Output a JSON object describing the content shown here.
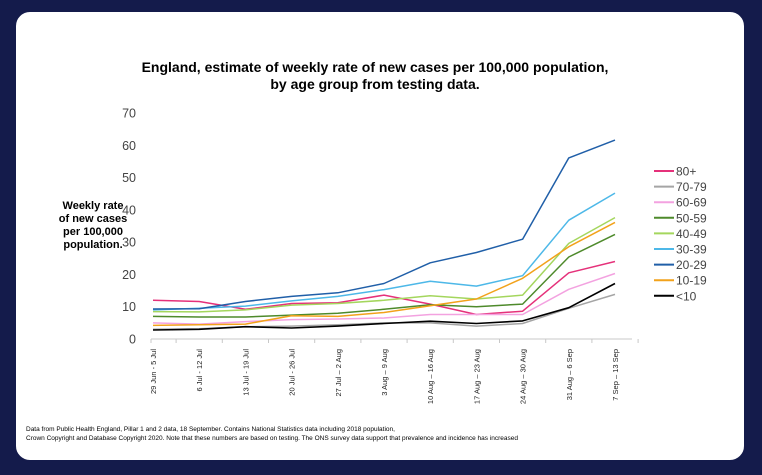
{
  "chart_data": {
    "type": "line",
    "title_line1": "England, estimate of weekly rate of new cases per 100,000 population,",
    "title_line2": "by age group from testing data.",
    "ylabel_lines": [
      "Weekly rate",
      "of new cases",
      "per 100,000",
      "population."
    ],
    "xlabel": "",
    "ylim": [
      0,
      70
    ],
    "yticks": [
      0,
      10,
      20,
      30,
      40,
      50,
      60,
      70
    ],
    "grid": false,
    "legend_position": "right",
    "categories": [
      "29 Jun - 5 Jul",
      "6 Jul - 12 Jul",
      "13 Jul - 19 Jul",
      "20 Jul - 26 Jul",
      "27 Jul – 2 Aug",
      "3 Aug – 9 Aug",
      "10 Aug – 16 Aug",
      "17 Aug – 23 Aug",
      "24 Aug – 30 Aug",
      "31 Aug – 6 Sep",
      "7 Sep – 13 Sep"
    ],
    "series": [
      {
        "name": "80+",
        "color": "#e5317a",
        "values": [
          12.0,
          11.6,
          9.2,
          11.0,
          11.2,
          13.6,
          10.8,
          7.6,
          8.6,
          20.5,
          24.0
        ]
      },
      {
        "name": "70-79",
        "color": "#a5a5a5",
        "values": [
          3.0,
          3.2,
          3.8,
          4.0,
          4.4,
          5.0,
          5.0,
          4.0,
          4.8,
          9.5,
          13.8
        ]
      },
      {
        "name": "60-69",
        "color": "#f3a2e0",
        "values": [
          5.0,
          4.6,
          5.4,
          6.0,
          6.2,
          6.5,
          7.6,
          7.6,
          7.6,
          15.4,
          20.3
        ]
      },
      {
        "name": "50-59",
        "color": "#4e8a2b",
        "values": [
          7.0,
          6.8,
          6.8,
          7.4,
          8.0,
          9.2,
          10.6,
          10.0,
          10.8,
          25.4,
          32.4
        ]
      },
      {
        "name": "40-49",
        "color": "#a4d65d",
        "values": [
          8.5,
          8.4,
          9.0,
          10.5,
          11.0,
          12.0,
          13.4,
          12.4,
          13.6,
          29.6,
          37.6
        ]
      },
      {
        "name": "30-39",
        "color": "#4db8e8",
        "values": [
          9.0,
          9.5,
          10.2,
          11.8,
          13.2,
          15.3,
          17.9,
          16.4,
          19.6,
          36.8,
          45.2
        ]
      },
      {
        "name": "20-29",
        "color": "#205fa8",
        "values": [
          9.3,
          9.4,
          11.6,
          13.2,
          14.3,
          17.2,
          23.6,
          26.8,
          30.9,
          56.1,
          61.6
        ]
      },
      {
        "name": "10-19",
        "color": "#f2a21b",
        "values": [
          4.2,
          4.4,
          4.6,
          7.2,
          7.0,
          8.2,
          10.3,
          12.4,
          18.8,
          28.6,
          36.1
        ]
      },
      {
        "name": "<10",
        "color": "#000000",
        "values": [
          2.8,
          3.0,
          3.8,
          3.4,
          4.0,
          4.8,
          5.5,
          4.8,
          5.6,
          9.7,
          17.2
        ]
      }
    ]
  },
  "footnote": {
    "line1": "Data from Public Health England, Pillar 1 and 2 data, 18 September.  Contains National Statistics data including 2018 population,",
    "line2": "Crown Copyright and Database Copyright 2020. Note that these numbers are based on testing. The ONS survey data support that prevalence and incidence has increased"
  }
}
